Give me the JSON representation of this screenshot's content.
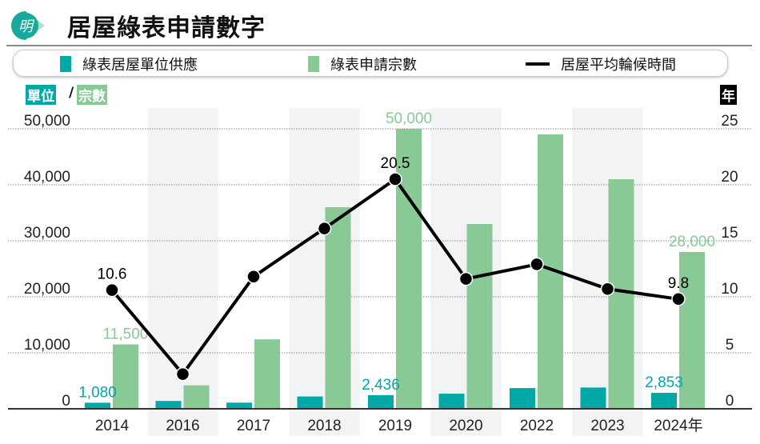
{
  "header": {
    "title": "居屋綠表申請數字",
    "logo_text": "明"
  },
  "legend": {
    "items": [
      {
        "label": "綠表居屋單位供應",
        "color": "#00a9a5",
        "type": "bar"
      },
      {
        "label": "綠表申請宗數",
        "color": "#88c995",
        "type": "bar"
      },
      {
        "label": "居屋平均輪候時間",
        "color": "#000000",
        "type": "line"
      }
    ]
  },
  "axis_units": {
    "left_a": "單位",
    "slash": "/",
    "left_b": "宗數",
    "right": "年"
  },
  "chart_data": {
    "type": "bar+line",
    "title": "居屋綠表申請數字",
    "categories": [
      "2014",
      "2016",
      "2017",
      "2018",
      "2019",
      "2020",
      "2022",
      "2023",
      "2024年"
    ],
    "left_axis": {
      "ylim": [
        0,
        50000
      ],
      "ticks": [
        "0",
        "10,000",
        "20,000",
        "30,000",
        "40,000",
        "50,000"
      ],
      "tick_values": [
        0,
        10000,
        20000,
        30000,
        40000,
        50000
      ]
    },
    "right_axis": {
      "ylim": [
        0,
        25
      ],
      "ticks": [
        "0",
        "5",
        "10",
        "15",
        "20",
        "25"
      ],
      "tick_values": [
        0,
        5,
        10,
        15,
        20,
        25
      ]
    },
    "series": [
      {
        "name": "綠表居屋單位供應",
        "type": "bar",
        "axis": "left",
        "color": "#00a9a5",
        "values": [
          1080,
          1400,
          1100,
          2200,
          2436,
          2700,
          3700,
          3800,
          2853
        ],
        "labels": [
          "1,080",
          null,
          null,
          null,
          "2,436",
          null,
          null,
          null,
          "2,853"
        ]
      },
      {
        "name": "綠表申請宗數",
        "type": "bar",
        "axis": "left",
        "color": "#88c995",
        "values": [
          11500,
          4200,
          12400,
          36000,
          50000,
          33000,
          49000,
          41000,
          28000
        ],
        "labels": [
          "11,500",
          null,
          null,
          null,
          "50,000",
          null,
          null,
          null,
          "28,000"
        ]
      },
      {
        "name": "居屋平均輪候時間",
        "type": "line",
        "axis": "right",
        "color": "#000000",
        "values": [
          10.6,
          3.1,
          11.8,
          16.1,
          20.5,
          11.6,
          12.9,
          10.7,
          9.8
        ],
        "labels": [
          "10.6",
          null,
          null,
          null,
          "20.5",
          null,
          null,
          null,
          "9.8"
        ]
      }
    ],
    "grid": true,
    "legend_position": "top"
  }
}
